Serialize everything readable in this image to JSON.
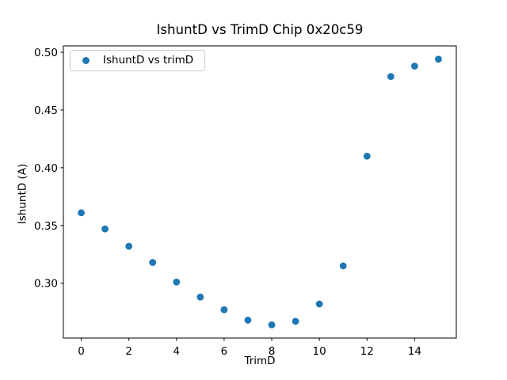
{
  "chart_data": {
    "type": "scatter",
    "title": "IshuntD vs TrimD Chip 0x20c59",
    "xlabel": "TrimD",
    "ylabel": "IshuntD (A)",
    "legend": {
      "labels": [
        "IshuntD vs trimD"
      ],
      "position": "upper left"
    },
    "series": [
      {
        "name": "IshuntD vs trimD",
        "x": [
          0,
          1,
          2,
          3,
          4,
          5,
          6,
          7,
          8,
          9,
          10,
          11,
          12,
          13,
          14,
          15
        ],
        "y": [
          0.361,
          0.347,
          0.332,
          0.318,
          0.301,
          0.288,
          0.277,
          0.268,
          0.264,
          0.267,
          0.282,
          0.315,
          0.41,
          0.479,
          0.488,
          0.494
        ]
      }
    ],
    "xlim": [
      -0.75,
      15.75
    ],
    "ylim": [
      0.2525,
      0.5055
    ],
    "xticks": {
      "values": [
        0,
        2,
        4,
        6,
        8,
        10,
        12,
        14
      ],
      "labels": [
        "0",
        "2",
        "4",
        "6",
        "8",
        "10",
        "12",
        "14"
      ]
    },
    "yticks": {
      "values": [
        0.3,
        0.35,
        0.4,
        0.45,
        0.5
      ],
      "labels": [
        "0.30",
        "0.35",
        "0.40",
        "0.45",
        "0.50"
      ]
    },
    "grid": false,
    "colors": {
      "marker": "#1f77b4",
      "axes": "#000000",
      "background": "#ffffff"
    }
  }
}
